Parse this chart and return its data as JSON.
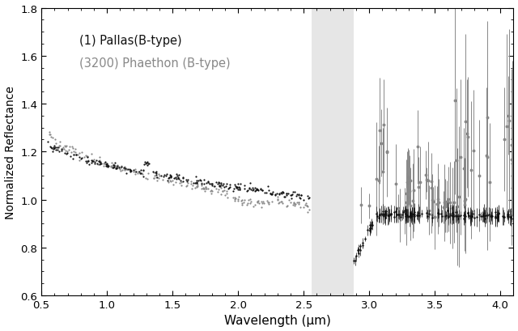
{
  "title": "",
  "xlabel": "Wavelength (μm)",
  "ylabel": "Normalized Reflectance",
  "xlim": [
    0.5,
    4.1
  ],
  "ylim": [
    0.6,
    1.8
  ],
  "yticks": [
    0.6,
    0.8,
    1.0,
    1.2,
    1.4,
    1.6,
    1.8
  ],
  "xticks": [
    0.5,
    1.0,
    1.5,
    2.0,
    2.5,
    3.0,
    3.5,
    4.0
  ],
  "shaded_region": [
    2.56,
    2.88
  ],
  "shaded_color": "#e6e6e6",
  "pallas_color": "#111111",
  "phaethon_color": "#888888",
  "legend_labels": [
    "(1) Pallas(B-type)",
    "(3200) Phaethon (B-type)"
  ],
  "background_color": "#ffffff"
}
